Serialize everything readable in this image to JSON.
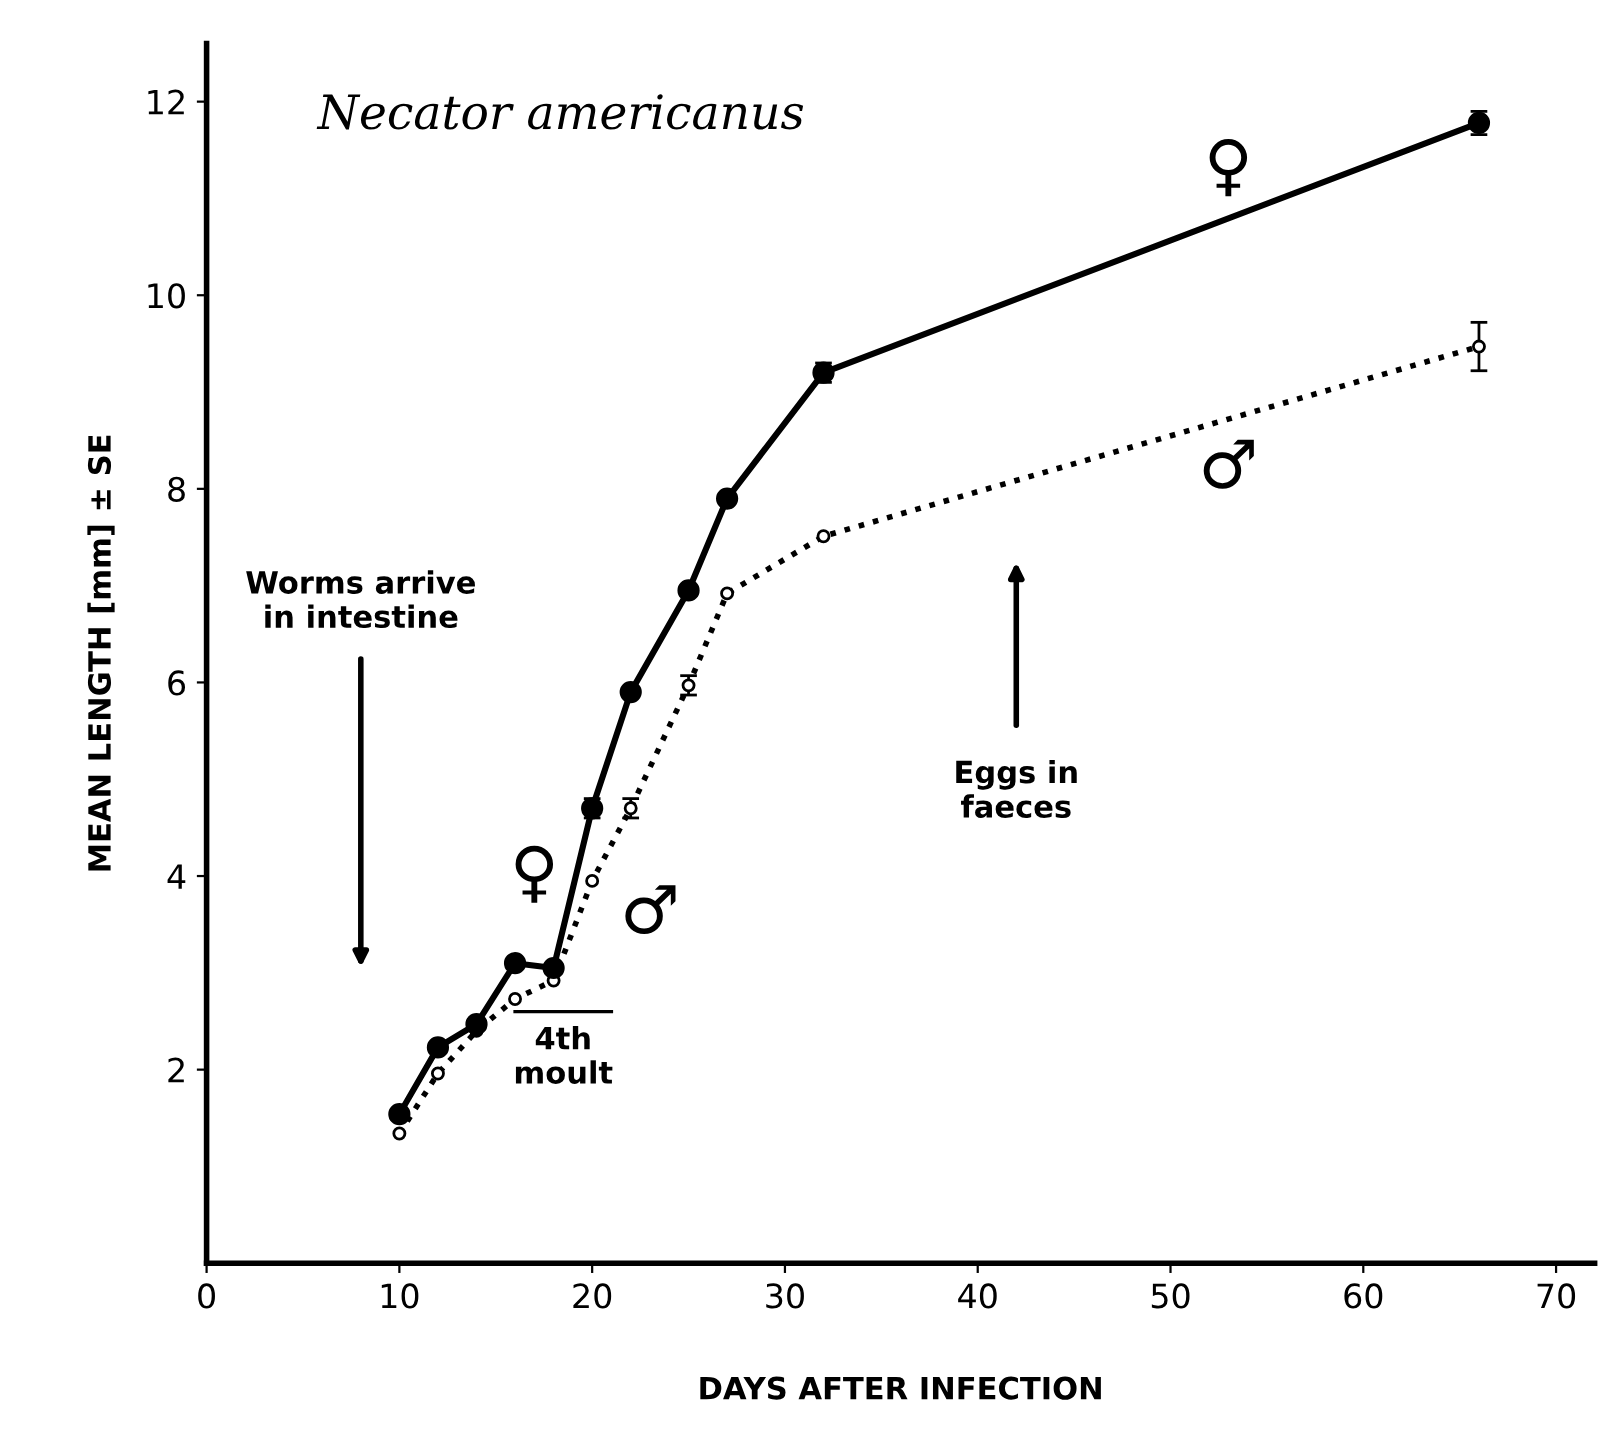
{
  "chart_data": {
    "type": "line",
    "title": "Necator americanus",
    "xlabel": "DAYS AFTER INFECTION",
    "ylabel": "MEAN LENGTH [mm] ± SE",
    "x": [
      10,
      12,
      14,
      16,
      18,
      20,
      22,
      25,
      27,
      32,
      66
    ],
    "series": [
      {
        "name": "♀",
        "color": "#000000",
        "line_style": "solid",
        "values": [
          1.54,
          2.23,
          2.47,
          3.1,
          3.05,
          4.7,
          5.9,
          6.95,
          7.9,
          9.2,
          11.78
        ],
        "errors": [
          null,
          null,
          null,
          null,
          null,
          0.1,
          null,
          null,
          null,
          0.1,
          0.12
        ]
      },
      {
        "name": "♂",
        "color": "#000000",
        "line_style": "dotted",
        "values": [
          1.34,
          1.96,
          2.4,
          2.73,
          2.92,
          3.95,
          4.7,
          5.97,
          6.92,
          7.51,
          9.47
        ],
        "errors": [
          null,
          null,
          null,
          null,
          null,
          null,
          0.1,
          0.1,
          null,
          null,
          0.25
        ]
      }
    ],
    "marker": "circle",
    "annotations": [
      "Worms arrive\nin intestine",
      "Eggs in\nfaeces",
      "4th\nmoult"
    ],
    "xlim": [
      0,
      72
    ],
    "ylim": [
      0,
      12.6
    ],
    "xticks": [
      0,
      10,
      20,
      30,
      40,
      50,
      60,
      70
    ],
    "yticks": [
      2,
      4,
      6,
      8,
      10,
      12
    ],
    "grid": false,
    "legend": false
  }
}
